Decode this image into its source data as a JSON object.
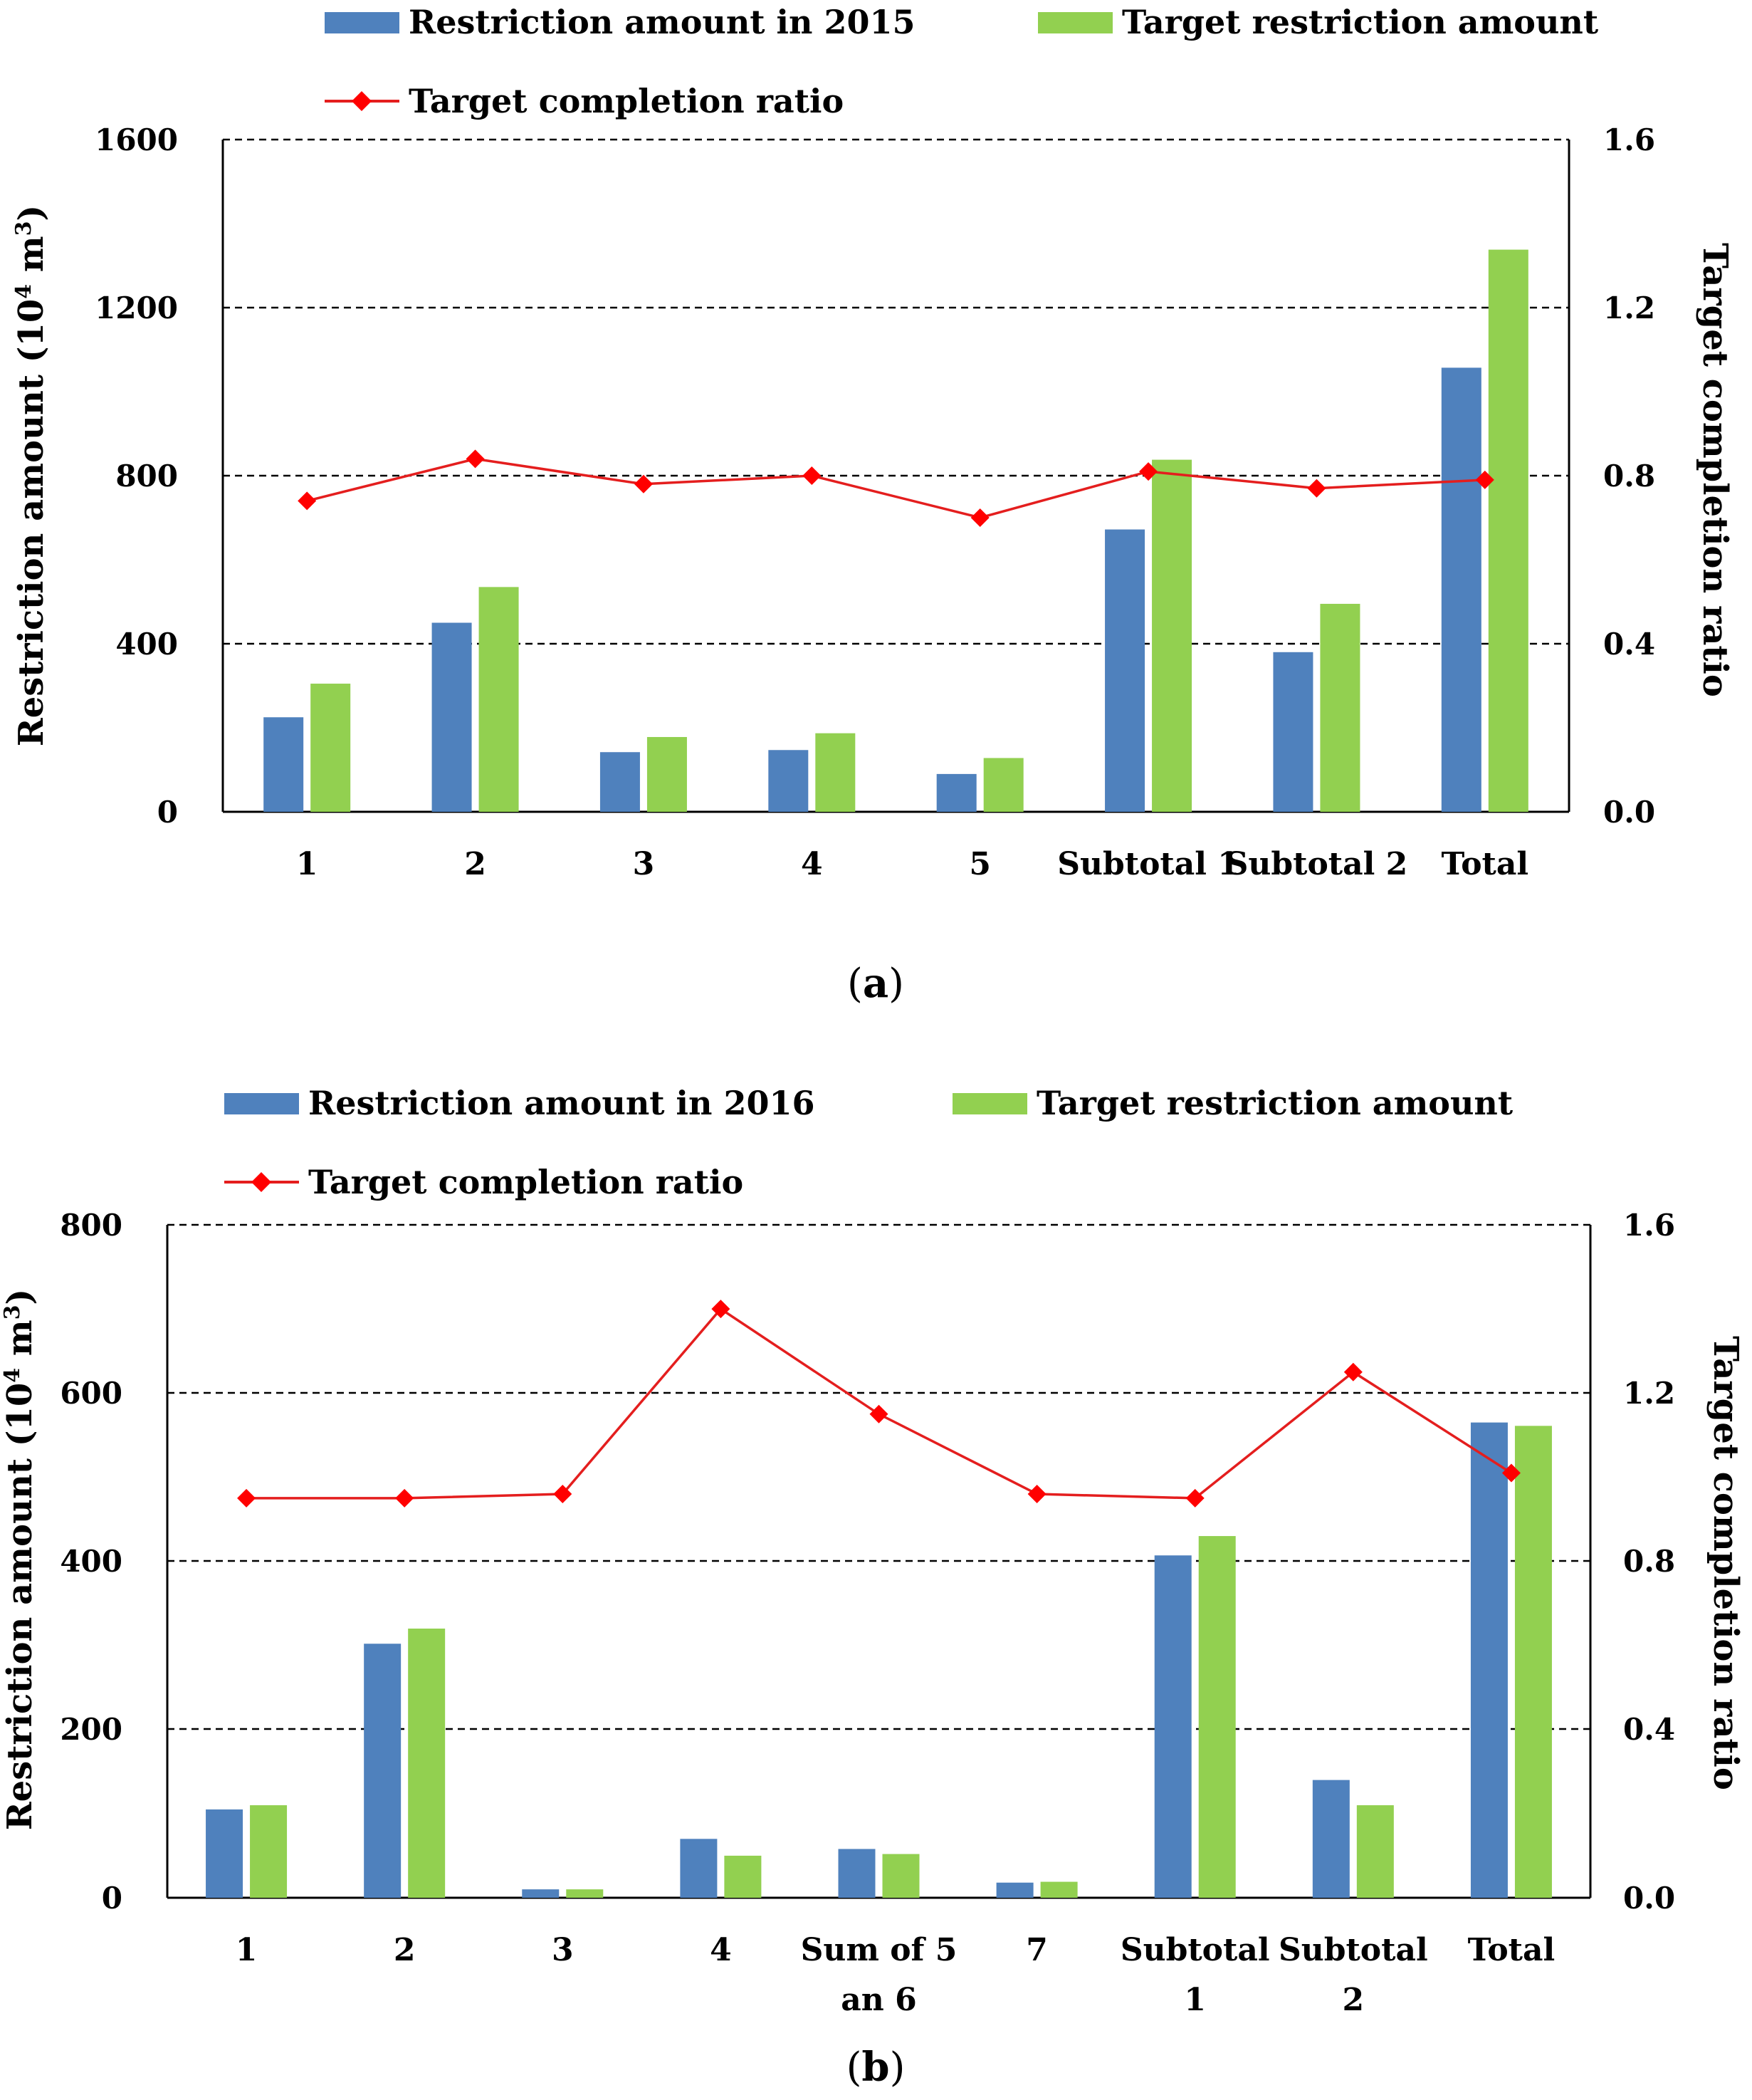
{
  "colors": {
    "bar_2015": "#4F81BD",
    "bar_target": "#92D050",
    "line": "#E41E1E",
    "marker": "#FF0000"
  },
  "chart_data": [
    {
      "type": "bar",
      "panel_label": "a",
      "title": "",
      "categories": [
        "1",
        "2",
        "3",
        "4",
        "5",
        "Subtotal 1",
        "Subtotal 2",
        "Total"
      ],
      "series": [
        {
          "name": "Restriction amount in 2015",
          "kind": "bar",
          "axis": "left",
          "values": [
            225,
            450,
            142,
            147,
            90,
            672,
            380,
            1057
          ]
        },
        {
          "name": "Target restriction amount",
          "kind": "bar",
          "axis": "left",
          "values": [
            305,
            535,
            178,
            187,
            128,
            838,
            495,
            1338
          ]
        },
        {
          "name": "Target completion ratio",
          "kind": "line",
          "axis": "right",
          "values": [
            0.74,
            0.84,
            0.78,
            0.8,
            0.7,
            0.81,
            0.77,
            0.79
          ]
        }
      ],
      "ylabel": "Restriction amount (10",
      "ylabel_sup": "4",
      "ylabel_unit": " m",
      "ylabel_unit_sup": "3",
      "ylabel_close": ")",
      "y2label": "Target completion ratio",
      "ylim": [
        0,
        1600
      ],
      "y2lim": [
        0,
        1.6
      ],
      "yticks": [
        "0",
        "400",
        "800",
        "1200",
        "1600"
      ],
      "y2ticks": [
        "0.0",
        "0.4",
        "0.8",
        "1.2",
        "1.6"
      ],
      "grid": true,
      "legend": "top"
    },
    {
      "type": "bar",
      "panel_label": "b",
      "title": "",
      "categories": [
        "1",
        "2",
        "3",
        "4",
        "Sum of 5\nan 6",
        "7",
        "Subtotal\n1",
        "Subtotal\n2",
        "Total"
      ],
      "series": [
        {
          "name": "Restriction amount in 2016",
          "kind": "bar",
          "axis": "left",
          "values": [
            105,
            302,
            10,
            70,
            58,
            18,
            407,
            140,
            565
          ]
        },
        {
          "name": "Target restriction amount",
          "kind": "bar",
          "axis": "left",
          "values": [
            110,
            320,
            10,
            50,
            52,
            19,
            430,
            110,
            561
          ]
        },
        {
          "name": "Target completion ratio",
          "kind": "line",
          "axis": "right",
          "values": [
            0.95,
            0.95,
            0.96,
            1.4,
            1.15,
            0.96,
            0.95,
            1.25,
            1.01
          ]
        }
      ],
      "ylabel": "Restriction amount (10",
      "ylabel_sup": "4",
      "ylabel_unit": " m",
      "ylabel_unit_sup": "3",
      "ylabel_close": ")",
      "y2label": "Target completion ratio",
      "ylim": [
        0,
        800
      ],
      "y2lim": [
        0,
        1.6
      ],
      "yticks": [
        "0",
        "200",
        "400",
        "600",
        "800"
      ],
      "y2ticks": [
        "0.0",
        "0.4",
        "0.8",
        "1.2",
        "1.6"
      ],
      "grid": true,
      "legend": "top"
    }
  ]
}
